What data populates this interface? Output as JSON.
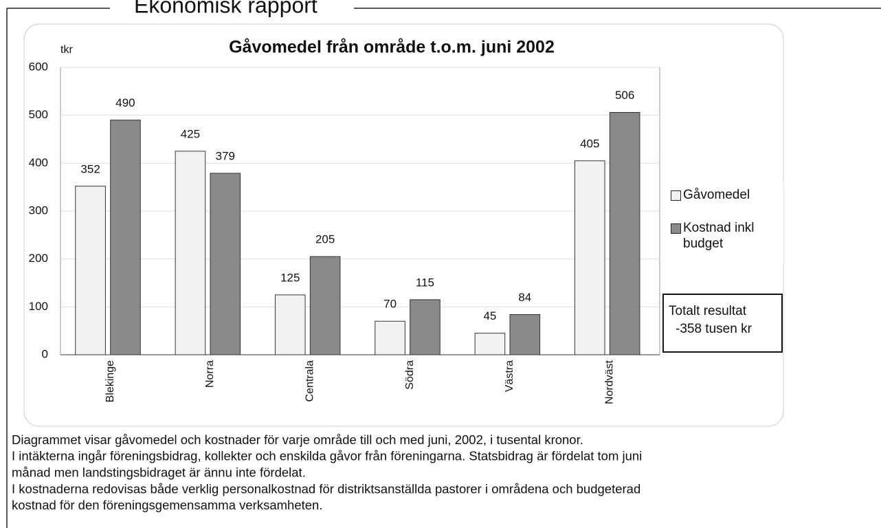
{
  "header": {
    "title": "Ekonomisk rapport"
  },
  "chart_data": {
    "type": "bar",
    "title": "Gåvomedel från område t.o.m. juni 2002",
    "y_label": "tkr",
    "categories": [
      "Blekinge",
      "Norra",
      "Centrala",
      "Södra",
      "Västra",
      "Nordväst"
    ],
    "series": [
      {
        "name": "Gåvomedel",
        "color": "#f2f2f2",
        "values": [
          352,
          425,
          125,
          70,
          45,
          405
        ]
      },
      {
        "name": "Kostnad inkl budget",
        "color": "#8a8a8a",
        "values": [
          490,
          379,
          205,
          115,
          84,
          506
        ]
      }
    ],
    "ylim": [
      0,
      600
    ],
    "yticks": [
      0,
      100,
      200,
      300,
      400,
      500,
      600
    ],
    "grid": true,
    "legend": "right",
    "annotations": [
      "Totalt resultat",
      "-358 tusen kr"
    ]
  },
  "text": {
    "lines": [
      "Diagrammet visar gåvomedel och kostnader för varje område till och med juni, 2002, i tusental kronor.",
      "I intäkterna ingår föreningsbidrag, kollekter och enskilda gåvor från föreningarna. Statsbidrag är fördelat tom juni",
      "månad men landstingsbidraget är ännu inte fördelat.",
      "I kostnaderna redovisas både verklig personalkostnad för distriktsanställda pastorer i områdena och budgeterad",
      "kostnad för den föreningsgemensamma verksamheten."
    ]
  }
}
